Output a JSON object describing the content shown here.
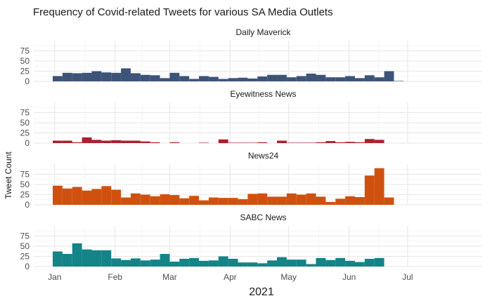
{
  "chart_data": {
    "type": "bar",
    "title": "Frequency of Covid-related Tweets for various SA Media Outlets",
    "xlabel": "2021",
    "ylabel": "Tweet Count",
    "x_ticks": [
      "Jan",
      "Feb",
      "Mar",
      "Apr",
      "May",
      "Jun",
      "Jul"
    ],
    "y_ticks": [
      0,
      25,
      50,
      75
    ],
    "ylim": [
      0,
      100
    ],
    "grid": true,
    "legend": "none",
    "facet_axis": "x",
    "bin_days": 5,
    "x_start": "2020-12-31",
    "panels": [
      {
        "name": "Daily Maverick",
        "color": "#3e5378",
        "values": [
          13,
          21,
          20,
          21,
          25,
          22,
          21,
          32,
          20,
          16,
          15,
          8,
          21,
          13,
          6,
          13,
          11,
          6,
          8,
          9,
          7,
          12,
          16,
          16,
          10,
          13,
          19,
          16,
          10,
          10,
          13,
          8,
          15,
          10,
          25,
          1
        ]
      },
      {
        "name": "Eyewitness News",
        "color": "#a8222d",
        "values": [
          6,
          6,
          2,
          14,
          8,
          6,
          7,
          6,
          6,
          4,
          2,
          0,
          2,
          0,
          0,
          1,
          0,
          9,
          1,
          1,
          1,
          2,
          0,
          6,
          1,
          1,
          1,
          2,
          5,
          2,
          3,
          2,
          10,
          8,
          0,
          0
        ]
      },
      {
        "name": "News24",
        "color": "#d0510f",
        "values": [
          47,
          40,
          44,
          35,
          39,
          46,
          37,
          18,
          28,
          25,
          21,
          26,
          24,
          16,
          22,
          11,
          18,
          17,
          17,
          14,
          27,
          28,
          20,
          20,
          28,
          25,
          28,
          20,
          7,
          15,
          21,
          19,
          72,
          90,
          18,
          0
        ]
      },
      {
        "name": "SABC News",
        "color": "#138487",
        "values": [
          37,
          31,
          57,
          42,
          40,
          40,
          20,
          16,
          20,
          15,
          17,
          31,
          12,
          19,
          21,
          14,
          15,
          25,
          19,
          10,
          10,
          8,
          15,
          23,
          17,
          17,
          6,
          21,
          16,
          21,
          14,
          11,
          19,
          21,
          0,
          0
        ]
      }
    ]
  }
}
